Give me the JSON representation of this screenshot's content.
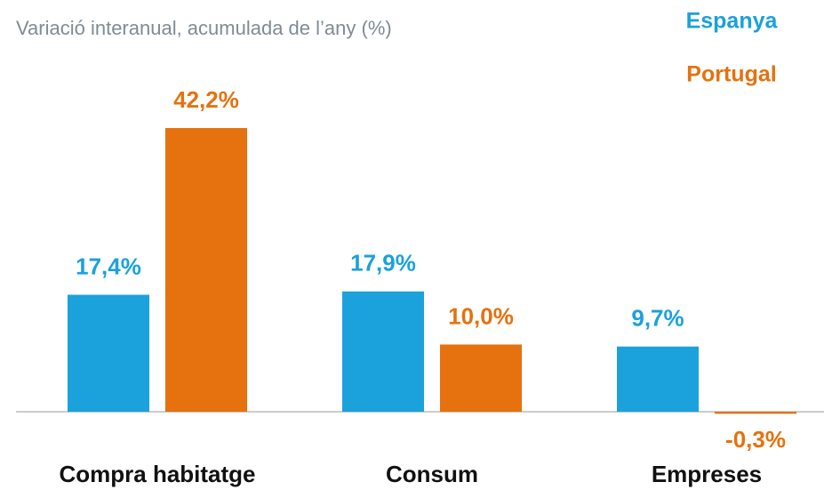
{
  "chart_data": {
    "type": "bar",
    "subtitle": "Variació interanual, acumulada de l’any (%)",
    "categories": [
      "Compra habitatge",
      "Consum",
      "Empreses"
    ],
    "series": [
      {
        "name": "Espanya",
        "color": "#1ba1dc",
        "values": [
          17.4,
          17.9,
          9.7
        ],
        "value_labels": [
          "17,4%",
          "17,9%",
          "9,7%"
        ]
      },
      {
        "name": "Portugal",
        "color": "#e5720f",
        "values": [
          42.2,
          10.0,
          -0.3
        ],
        "value_labels": [
          "42,2%",
          "10,0%",
          "-0,3%"
        ]
      }
    ],
    "legend": "top-right"
  }
}
